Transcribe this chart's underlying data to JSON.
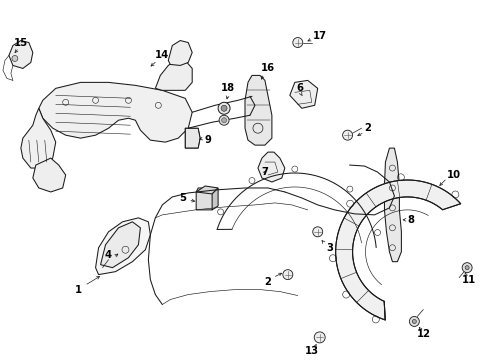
{
  "bg_color": "#ffffff",
  "line_color": "#1a1a1a",
  "label_color": "#000000",
  "figsize": [
    4.89,
    3.6
  ],
  "dpi": 100,
  "lw_main": 0.75,
  "lw_thin": 0.45,
  "label_fs": 7.2
}
